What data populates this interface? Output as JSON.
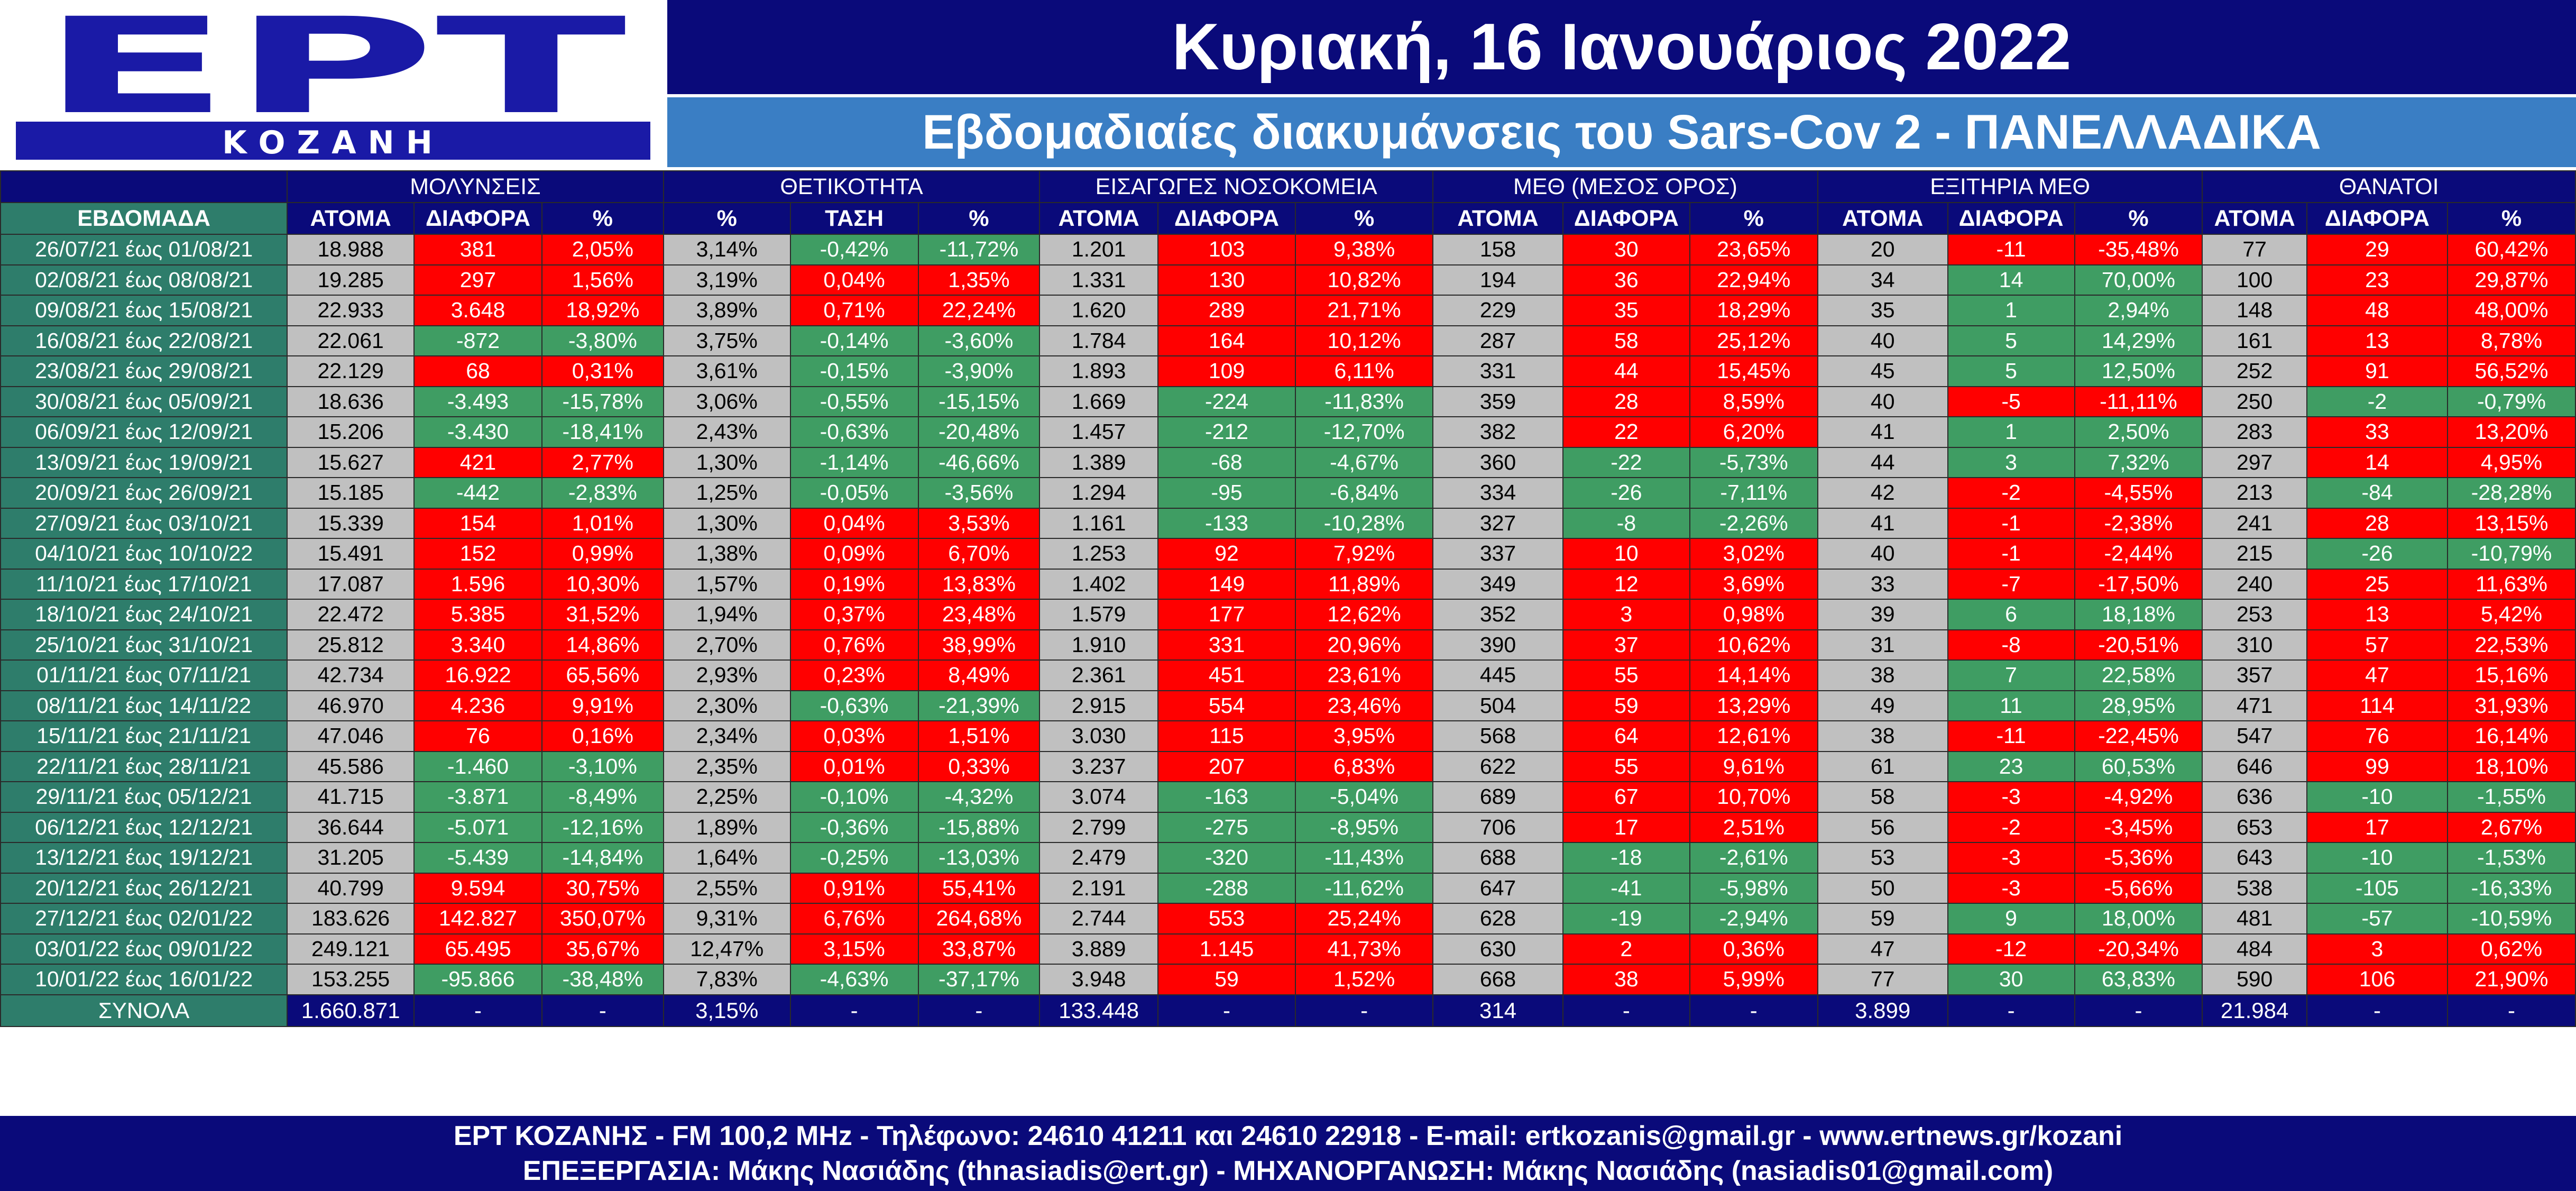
{
  "logo": {
    "letters": "ΕΡΤ",
    "sub": "ΚΟΖΑΝΗ"
  },
  "title": "Κυριακή, 16 Ιανουάριος 2022",
  "subtitle": "Εβδομαδιαίες διακυμάνσεις του Sars-Cov 2 - ΠΑΝΕΛΛΑΔΙΚΑ",
  "colors": {
    "navy": "#0a0a7a",
    "blue": "#3a7ec4",
    "teal": "#2e7d6b",
    "gray": "#c0c0c0",
    "red": "#ff0000",
    "green": "#3f9d63"
  },
  "groups": [
    "ΜΟΛΥΝΣΕΙΣ",
    "ΘΕΤΙΚΟΤΗΤΑ",
    "ΕΙΣΑΓΩΓΕΣ ΝΟΣΟΚΟΜΕΙΑ",
    "ΜΕΘ (ΜΕΣΟΣ ΟΡΟΣ)",
    "ΕΞΙΤΗΡΙΑ ΜΕΘ",
    "ΘΑΝΑΤΟΙ"
  ],
  "week_header": "ΕΒΔΟΜΑΔΑ",
  "subheaders": [
    "ΑΤΟΜΑ",
    "ΔΙΑΦΟΡΑ",
    "%",
    "%",
    "ΤΑΣΗ",
    "%",
    "ΑΤΟΜΑ",
    "ΔΙΑΦΟΡΑ",
    "%",
    "ΑΤΟΜΑ",
    "ΔΙΑΦΟΡΑ",
    "%",
    "ΑΤΟΜΑ",
    "ΔΙΑΦΟΡΑ",
    "%",
    "ΑΤΟΜΑ",
    "ΔΙΑΦΟΡΑ",
    "%"
  ],
  "rows": [
    {
      "week": "26/07/21 έως 01/08/21",
      "cells": [
        "18.988",
        "381",
        "2,05%",
        "3,14%",
        "-0,42%",
        "-11,72%",
        "1.201",
        "103",
        "9,38%",
        "158",
        "30",
        "23,65%",
        "20",
        "-11",
        "-35,48%",
        "77",
        "29",
        "60,42%"
      ],
      "colors": "grrgnngrrgrrgrrgrr"
    },
    {
      "week": "02/08/21 έως 08/08/21",
      "cells": [
        "19.285",
        "297",
        "1,56%",
        "3,19%",
        "0,04%",
        "1,35%",
        "1.331",
        "130",
        "10,82%",
        "194",
        "36",
        "22,94%",
        "34",
        "14",
        "70,00%",
        "100",
        "23",
        "29,87%"
      ],
      "colors": "grrgrrgrrgrrgnngrr"
    },
    {
      "week": "09/08/21 έως 15/08/21",
      "cells": [
        "22.933",
        "3.648",
        "18,92%",
        "3,89%",
        "0,71%",
        "22,24%",
        "1.620",
        "289",
        "21,71%",
        "229",
        "35",
        "18,29%",
        "35",
        "1",
        "2,94%",
        "148",
        "48",
        "48,00%"
      ],
      "colors": "grrgrrgrrgrrgnngrr"
    },
    {
      "week": "16/08/21 έως 22/08/21",
      "cells": [
        "22.061",
        "-872",
        "-3,80%",
        "3,75%",
        "-0,14%",
        "-3,60%",
        "1.784",
        "164",
        "10,12%",
        "287",
        "58",
        "25,12%",
        "40",
        "5",
        "14,29%",
        "161",
        "13",
        "8,78%"
      ],
      "colors": "gnngnngrrgrrgnngrr"
    },
    {
      "week": "23/08/21 έως 29/08/21",
      "cells": [
        "22.129",
        "68",
        "0,31%",
        "3,61%",
        "-0,15%",
        "-3,90%",
        "1.893",
        "109",
        "6,11%",
        "331",
        "44",
        "15,45%",
        "45",
        "5",
        "12,50%",
        "252",
        "91",
        "56,52%"
      ],
      "colors": "grrgnngrrgrrgnngrr"
    },
    {
      "week": "30/08/21 έως 05/09/21",
      "cells": [
        "18.636",
        "-3.493",
        "-15,78%",
        "3,06%",
        "-0,55%",
        "-15,15%",
        "1.669",
        "-224",
        "-11,83%",
        "359",
        "28",
        "8,59%",
        "40",
        "-5",
        "-11,11%",
        "250",
        "-2",
        "-0,79%"
      ],
      "colors": "gnngnngnngrrgrrgnn"
    },
    {
      "week": "06/09/21 έως 12/09/21",
      "cells": [
        "15.206",
        "-3.430",
        "-18,41%",
        "2,43%",
        "-0,63%",
        "-20,48%",
        "1.457",
        "-212",
        "-12,70%",
        "382",
        "22",
        "6,20%",
        "41",
        "1",
        "2,50%",
        "283",
        "33",
        "13,20%"
      ],
      "colors": "gnngnngnngrrgnngrr"
    },
    {
      "week": "13/09/21 έως 19/09/21",
      "cells": [
        "15.627",
        "421",
        "2,77%",
        "1,30%",
        "-1,14%",
        "-46,66%",
        "1.389",
        "-68",
        "-4,67%",
        "360",
        "-22",
        "-5,73%",
        "44",
        "3",
        "7,32%",
        "297",
        "14",
        "4,95%"
      ],
      "colors": "grrgnngnngnngnngrr"
    },
    {
      "week": "20/09/21 έως 26/09/21",
      "cells": [
        "15.185",
        "-442",
        "-2,83%",
        "1,25%",
        "-0,05%",
        "-3,56%",
        "1.294",
        "-95",
        "-6,84%",
        "334",
        "-26",
        "-7,11%",
        "42",
        "-2",
        "-4,55%",
        "213",
        "-84",
        "-28,28%"
      ],
      "colors": "gnngnngnngnngrrgnn"
    },
    {
      "week": "27/09/21 έως 03/10/21",
      "cells": [
        "15.339",
        "154",
        "1,01%",
        "1,30%",
        "0,04%",
        "3,53%",
        "1.161",
        "-133",
        "-10,28%",
        "327",
        "-8",
        "-2,26%",
        "41",
        "-1",
        "-2,38%",
        "241",
        "28",
        "13,15%"
      ],
      "colors": "grrgrrgnngnngrrgrr"
    },
    {
      "week": "04/10/21 έως 10/10/22",
      "cells": [
        "15.491",
        "152",
        "0,99%",
        "1,38%",
        "0,09%",
        "6,70%",
        "1.253",
        "92",
        "7,92%",
        "337",
        "10",
        "3,02%",
        "40",
        "-1",
        "-2,44%",
        "215",
        "-26",
        "-10,79%"
      ],
      "colors": "grrgrrgrrgrrgrrgnn"
    },
    {
      "week": "11/10/21 έως 17/10/21",
      "cells": [
        "17.087",
        "1.596",
        "10,30%",
        "1,57%",
        "0,19%",
        "13,83%",
        "1.402",
        "149",
        "11,89%",
        "349",
        "12",
        "3,69%",
        "33",
        "-7",
        "-17,50%",
        "240",
        "25",
        "11,63%"
      ],
      "colors": "grrgrrgrrgrrgrrgrr"
    },
    {
      "week": "18/10/21 έως 24/10/21",
      "cells": [
        "22.472",
        "5.385",
        "31,52%",
        "1,94%",
        "0,37%",
        "23,48%",
        "1.579",
        "177",
        "12,62%",
        "352",
        "3",
        "0,98%",
        "39",
        "6",
        "18,18%",
        "253",
        "13",
        "5,42%"
      ],
      "colors": "grrgrrgrrgrrgnngrr"
    },
    {
      "week": "25/10/21 έως 31/10/21",
      "cells": [
        "25.812",
        "3.340",
        "14,86%",
        "2,70%",
        "0,76%",
        "38,99%",
        "1.910",
        "331",
        "20,96%",
        "390",
        "37",
        "10,62%",
        "31",
        "-8",
        "-20,51%",
        "310",
        "57",
        "22,53%"
      ],
      "colors": "grrgrrgrrgrrgrrgrr"
    },
    {
      "week": "01/11/21 έως 07/11/21",
      "cells": [
        "42.734",
        "16.922",
        "65,56%",
        "2,93%",
        "0,23%",
        "8,49%",
        "2.361",
        "451",
        "23,61%",
        "445",
        "55",
        "14,14%",
        "38",
        "7",
        "22,58%",
        "357",
        "47",
        "15,16%"
      ],
      "colors": "grrgrrgrrgrrgnngrr"
    },
    {
      "week": "08/11/21 έως 14/11/22",
      "cells": [
        "46.970",
        "4.236",
        "9,91%",
        "2,30%",
        "-0,63%",
        "-21,39%",
        "2.915",
        "554",
        "23,46%",
        "504",
        "59",
        "13,29%",
        "49",
        "11",
        "28,95%",
        "471",
        "114",
        "31,93%"
      ],
      "colors": "grrgnngrrgrrgnngrr"
    },
    {
      "week": "15/11/21 έως 21/11/21",
      "cells": [
        "47.046",
        "76",
        "0,16%",
        "2,34%",
        "0,03%",
        "1,51%",
        "3.030",
        "115",
        "3,95%",
        "568",
        "64",
        "12,61%",
        "38",
        "-11",
        "-22,45%",
        "547",
        "76",
        "16,14%"
      ],
      "colors": "grrgrrgrrgrrgrrgrr"
    },
    {
      "week": "22/11/21 έως 28/11/21",
      "cells": [
        "45.586",
        "-1.460",
        "-3,10%",
        "2,35%",
        "0,01%",
        "0,33%",
        "3.237",
        "207",
        "6,83%",
        "622",
        "55",
        "9,61%",
        "61",
        "23",
        "60,53%",
        "646",
        "99",
        "18,10%"
      ],
      "colors": "gnngrrgrrgrrgnngrr"
    },
    {
      "week": "29/11/21 έως 05/12/21",
      "cells": [
        "41.715",
        "-3.871",
        "-8,49%",
        "2,25%",
        "-0,10%",
        "-4,32%",
        "3.074",
        "-163",
        "-5,04%",
        "689",
        "67",
        "10,70%",
        "58",
        "-3",
        "-4,92%",
        "636",
        "-10",
        "-1,55%"
      ],
      "colors": "gnngnngnngrrgrrgnn"
    },
    {
      "week": "06/12/21 έως 12/12/21",
      "cells": [
        "36.644",
        "-5.071",
        "-12,16%",
        "1,89%",
        "-0,36%",
        "-15,88%",
        "2.799",
        "-275",
        "-8,95%",
        "706",
        "17",
        "2,51%",
        "56",
        "-2",
        "-3,45%",
        "653",
        "17",
        "2,67%"
      ],
      "colors": "gnngnngnngrrgrrgrr"
    },
    {
      "week": "13/12/21 έως 19/12/21",
      "cells": [
        "31.205",
        "-5.439",
        "-14,84%",
        "1,64%",
        "-0,25%",
        "-13,03%",
        "2.479",
        "-320",
        "-11,43%",
        "688",
        "-18",
        "-2,61%",
        "53",
        "-3",
        "-5,36%",
        "643",
        "-10",
        "-1,53%"
      ],
      "colors": "gnngnngnngnngrrgnn"
    },
    {
      "week": "20/12/21 έως 26/12/21",
      "cells": [
        "40.799",
        "9.594",
        "30,75%",
        "2,55%",
        "0,91%",
        "55,41%",
        "2.191",
        "-288",
        "-11,62%",
        "647",
        "-41",
        "-5,98%",
        "50",
        "-3",
        "-5,66%",
        "538",
        "-105",
        "-16,33%"
      ],
      "colors": "grrgrrgnngnngrrgnn"
    },
    {
      "week": "27/12/21 έως 02/01/22",
      "cells": [
        "183.626",
        "142.827",
        "350,07%",
        "9,31%",
        "6,76%",
        "264,68%",
        "2.744",
        "553",
        "25,24%",
        "628",
        "-19",
        "-2,94%",
        "59",
        "9",
        "18,00%",
        "481",
        "-57",
        "-10,59%"
      ],
      "colors": "grrgrrgrrgnngnngnn"
    },
    {
      "week": "03/01/22 έως 09/01/22",
      "cells": [
        "249.121",
        "65.495",
        "35,67%",
        "12,47%",
        "3,15%",
        "33,87%",
        "3.889",
        "1.145",
        "41,73%",
        "630",
        "2",
        "0,36%",
        "47",
        "-12",
        "-20,34%",
        "484",
        "3",
        "0,62%"
      ],
      "colors": "grrgrrgrrgrrgrrgrr"
    },
    {
      "week": "10/01/22 έως 16/01/22",
      "cells": [
        "153.255",
        "-95.866",
        "-38,48%",
        "7,83%",
        "-4,63%",
        "-37,17%",
        "3.948",
        "59",
        "1,52%",
        "668",
        "38",
        "5,99%",
        "77",
        "30",
        "63,83%",
        "590",
        "106",
        "21,90%"
      ],
      "colors": "gnngnngrrgrrgnngrr"
    }
  ],
  "totals": {
    "label": "ΣΥΝΟΛΑ",
    "cells": [
      "1.660.871",
      "-",
      "-",
      "3,15%",
      "-",
      "-",
      "133.448",
      "-",
      "-",
      "314",
      "-",
      "-",
      "3.899",
      "-",
      "-",
      "21.984",
      "-",
      "-"
    ]
  },
  "footer": {
    "line1": "ΕΡΤ ΚΟΖΑΝΗΣ - FM 100,2 MHz - Τηλέφωνο:  24610 41211 και 24610 22918 - E-mail: ertkozanis@gmail.gr - www.ertnews.gr/kozani",
    "line2": "ΕΠΕΞΕΡΓΑΣΙΑ: Μάκης Νασιάδης (thnasiadis@ert.gr) - ΜΗΧΑΝΟΡΓΑΝΩΣΗ: Μάκης Νασιάδης (nasiadis01@gmail.com)"
  }
}
